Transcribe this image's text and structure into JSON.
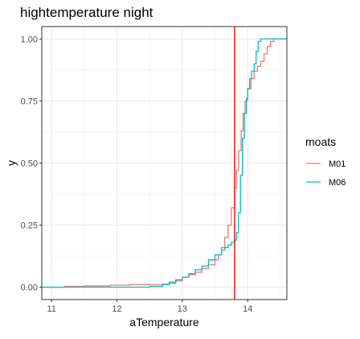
{
  "chart_data": {
    "type": "line",
    "title": "hightemperature night",
    "xlabel": "aTemperature",
    "ylabel": "y",
    "xlim": [
      10.85,
      14.6
    ],
    "ylim": [
      -0.05,
      1.05
    ],
    "x_ticks": [
      11,
      12,
      13,
      14
    ],
    "x_tick_labels": [
      "11",
      "12",
      "13",
      "14"
    ],
    "y_ticks": [
      0,
      0.25,
      0.5,
      0.75,
      1
    ],
    "y_tick_labels": [
      "0.00",
      "0.25",
      "0.50",
      "0.75",
      "1.00"
    ],
    "grid": true,
    "legend": {
      "title": "moats",
      "position": "right"
    },
    "vline": {
      "x": 13.8,
      "color": "#ff0000"
    },
    "series": [
      {
        "name": "M01",
        "color": "#F8766D",
        "points": [
          [
            10.85,
            0.0
          ],
          [
            11.0,
            0.0
          ],
          [
            11.2,
            0.003
          ],
          [
            11.5,
            0.005
          ],
          [
            11.9,
            0.008
          ],
          [
            12.2,
            0.01
          ],
          [
            12.5,
            0.01
          ],
          [
            12.7,
            0.012
          ],
          [
            12.8,
            0.015
          ],
          [
            12.9,
            0.025
          ],
          [
            13.0,
            0.04
          ],
          [
            13.1,
            0.05
          ],
          [
            13.2,
            0.06
          ],
          [
            13.3,
            0.075
          ],
          [
            13.4,
            0.09
          ],
          [
            13.5,
            0.11
          ],
          [
            13.55,
            0.13
          ],
          [
            13.6,
            0.16
          ],
          [
            13.65,
            0.2
          ],
          [
            13.7,
            0.25
          ],
          [
            13.75,
            0.32
          ],
          [
            13.8,
            0.4
          ],
          [
            13.83,
            0.47
          ],
          [
            13.86,
            0.55
          ],
          [
            13.9,
            0.63
          ],
          [
            13.93,
            0.7
          ],
          [
            13.96,
            0.75
          ],
          [
            14.0,
            0.8
          ],
          [
            14.05,
            0.84
          ],
          [
            14.1,
            0.87
          ],
          [
            14.15,
            0.89
          ],
          [
            14.2,
            0.91
          ],
          [
            14.25,
            0.94
          ],
          [
            14.3,
            0.97
          ],
          [
            14.35,
            0.99
          ],
          [
            14.4,
            1.0
          ],
          [
            14.6,
            1.0
          ]
        ]
      },
      {
        "name": "M06",
        "color": "#00BFC4",
        "points": [
          [
            10.85,
            0.0
          ],
          [
            11.5,
            0.0
          ],
          [
            12.0,
            0.0
          ],
          [
            12.5,
            0.003
          ],
          [
            12.7,
            0.01
          ],
          [
            12.8,
            0.02
          ],
          [
            12.9,
            0.03
          ],
          [
            13.0,
            0.04
          ],
          [
            13.1,
            0.055
          ],
          [
            13.2,
            0.07
          ],
          [
            13.3,
            0.085
          ],
          [
            13.4,
            0.11
          ],
          [
            13.5,
            0.13
          ],
          [
            13.6,
            0.15
          ],
          [
            13.65,
            0.16
          ],
          [
            13.7,
            0.17
          ],
          [
            13.75,
            0.18
          ],
          [
            13.8,
            0.19
          ],
          [
            13.83,
            0.22
          ],
          [
            13.86,
            0.3
          ],
          [
            13.89,
            0.45
          ],
          [
            13.92,
            0.6
          ],
          [
            13.95,
            0.7
          ],
          [
            13.98,
            0.76
          ],
          [
            14.0,
            0.8
          ],
          [
            14.03,
            0.84
          ],
          [
            14.06,
            0.87
          ],
          [
            14.1,
            0.9
          ],
          [
            14.13,
            0.95
          ],
          [
            14.16,
            0.99
          ],
          [
            14.2,
            1.0
          ],
          [
            14.6,
            1.0
          ]
        ]
      }
    ]
  }
}
